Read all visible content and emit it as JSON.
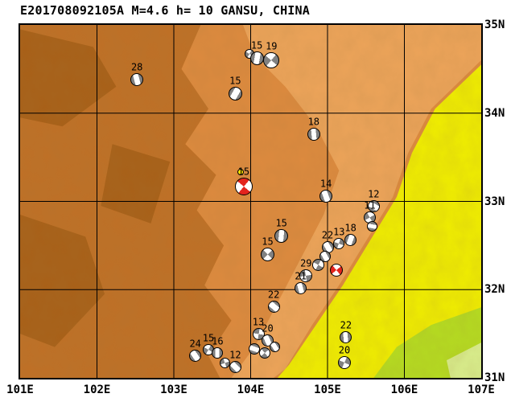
{
  "title": "E201708092105A M=4.6 h= 10 GANSU, CHINA",
  "map": {
    "lon_min": 101,
    "lon_max": 107,
    "lat_min": 31,
    "lat_max": 35,
    "x_ticks": [
      {
        "value": 101,
        "label": "101E"
      },
      {
        "value": 102,
        "label": "102E"
      },
      {
        "value": 103,
        "label": "103E"
      },
      {
        "value": 104,
        "label": "104E"
      },
      {
        "value": 105,
        "label": "105E"
      },
      {
        "value": 106,
        "label": "106E"
      },
      {
        "value": 107,
        "label": "107E"
      }
    ],
    "y_ticks": [
      {
        "value": 35,
        "label": "35N"
      },
      {
        "value": 34,
        "label": "34N"
      },
      {
        "value": 33,
        "label": "33N"
      },
      {
        "value": 32,
        "label": "32N"
      },
      {
        "value": 31,
        "label": "31N"
      }
    ],
    "grid_lons": [
      102,
      103,
      104,
      105,
      106
    ],
    "grid_lats": [
      32,
      33,
      34
    ]
  },
  "colors": {
    "land_mid": "#dd8a3e",
    "land_dark": "#bf7026",
    "land_darker": "#a86018",
    "land_light": "#eda45a",
    "basin_yellow": "#f0ee00",
    "basin_green": "#b5dd20",
    "basin_pale_green": "#d9ef8d",
    "ball_gray": "#818181",
    "ball_red": "#e3241d",
    "dot_yellow": "#ffe400",
    "outline": "#000000"
  },
  "terrain_regions": [
    {
      "color": "land_dark",
      "points": [
        [
          101,
          35
        ],
        [
          103.35,
          35
        ],
        [
          103.1,
          34.5
        ],
        [
          103.45,
          34.05
        ],
        [
          103.15,
          33.65
        ],
        [
          103.55,
          33.3
        ],
        [
          103.3,
          32.9
        ],
        [
          103.65,
          32.5
        ],
        [
          103.4,
          32.05
        ],
        [
          103.75,
          31.65
        ],
        [
          103.45,
          31.25
        ],
        [
          103.6,
          31
        ],
        [
          101,
          31
        ]
      ]
    },
    {
      "color": "land_darker",
      "points": [
        [
          101,
          34.95
        ],
        [
          101.95,
          34.75
        ],
        [
          102.25,
          34.3
        ],
        [
          101.55,
          33.85
        ],
        [
          101,
          33.95
        ]
      ]
    },
    {
      "color": "land_darker",
      "points": [
        [
          101,
          32.85
        ],
        [
          101.85,
          32.6
        ],
        [
          102.1,
          31.95
        ],
        [
          101.45,
          31.35
        ],
        [
          101,
          31.5
        ]
      ]
    },
    {
      "color": "land_darker",
      "points": [
        [
          102.2,
          33.65
        ],
        [
          102.95,
          33.45
        ],
        [
          102.7,
          32.75
        ],
        [
          102.05,
          32.95
        ]
      ]
    },
    {
      "color": "land_light",
      "points": [
        [
          103.9,
          35
        ],
        [
          107,
          35
        ],
        [
          107,
          34.6
        ],
        [
          106.35,
          34.05
        ],
        [
          106.05,
          33.55
        ],
        [
          105.85,
          33.05
        ],
        [
          105.5,
          32.55
        ],
        [
          105.15,
          32.05
        ],
        [
          104.8,
          31.6
        ],
        [
          104.45,
          31.1
        ],
        [
          104.3,
          31
        ],
        [
          103.75,
          31
        ],
        [
          104.05,
          31.35
        ],
        [
          104.35,
          31.85
        ],
        [
          104.65,
          32.35
        ],
        [
          104.95,
          32.85
        ],
        [
          105.15,
          33.35
        ],
        [
          104.85,
          33.85
        ],
        [
          104.45,
          34.3
        ],
        [
          104.05,
          34.65
        ]
      ]
    },
    {
      "color": "basin_yellow",
      "points": [
        [
          107,
          34.55
        ],
        [
          106.4,
          34.05
        ],
        [
          106.1,
          33.55
        ],
        [
          105.9,
          33.05
        ],
        [
          105.55,
          32.55
        ],
        [
          105.2,
          32.05
        ],
        [
          104.85,
          31.6
        ],
        [
          104.5,
          31.15
        ],
        [
          104.35,
          31
        ],
        [
          107,
          31
        ]
      ]
    },
    {
      "color": "basin_green",
      "points": [
        [
          107,
          31.8
        ],
        [
          106.35,
          31.6
        ],
        [
          105.9,
          31.35
        ],
        [
          105.6,
          31
        ],
        [
          107,
          31
        ]
      ]
    },
    {
      "color": "basin_pale_green",
      "points": [
        [
          107,
          31.4
        ],
        [
          106.55,
          31.2
        ],
        [
          106.6,
          31
        ],
        [
          107,
          31
        ]
      ]
    }
  ],
  "beachballs": [
    {
      "depth": "28",
      "lon": 102.52,
      "lat": 34.38,
      "size": 16,
      "rot": 75,
      "style": "stripe",
      "color": "gray"
    },
    {
      "depth": "",
      "lon": 103.98,
      "lat": 34.67,
      "size": 12,
      "rot": 30,
      "style": "quad",
      "color": "gray"
    },
    {
      "depth": "15",
      "lon": 104.08,
      "lat": 34.62,
      "size": 17,
      "rot": 100,
      "style": "stripe",
      "color": "gray"
    },
    {
      "depth": "19",
      "lon": 104.27,
      "lat": 34.6,
      "size": 20,
      "rot": 40,
      "style": "quad",
      "color": "gray"
    },
    {
      "depth": "15",
      "lon": 103.8,
      "lat": 34.22,
      "size": 17,
      "rot": 120,
      "style": "stripe",
      "color": "gray"
    },
    {
      "depth": "18",
      "lon": 104.82,
      "lat": 33.76,
      "size": 16,
      "rot": 85,
      "style": "stripe",
      "color": "gray"
    },
    {
      "depth": "15",
      "lon": 103.91,
      "lat": 33.17,
      "size": 22,
      "rot": 130,
      "style": "quad",
      "color": "red"
    },
    {
      "depth": "14",
      "lon": 104.98,
      "lat": 33.06,
      "size": 16,
      "rot": 70,
      "style": "stripe",
      "color": "gray"
    },
    {
      "depth": "12",
      "lon": 105.6,
      "lat": 32.95,
      "size": 15,
      "rot": 30,
      "style": "stripe",
      "color": "gray"
    },
    {
      "depth": "11",
      "lon": 105.55,
      "lat": 32.82,
      "size": 15,
      "rot": 60,
      "style": "quad",
      "color": "gray"
    },
    {
      "depth": "",
      "lon": 105.58,
      "lat": 32.72,
      "size": 13,
      "rot": 10,
      "style": "stripe",
      "color": "gray"
    },
    {
      "depth": "15",
      "lon": 104.4,
      "lat": 32.61,
      "size": 17,
      "rot": 95,
      "style": "stripe",
      "color": "gray"
    },
    {
      "depth": "15",
      "lon": 104.22,
      "lat": 32.4,
      "size": 17,
      "rot": 45,
      "style": "quad",
      "color": "gray"
    },
    {
      "depth": "22",
      "lon": 105.0,
      "lat": 32.48,
      "size": 15,
      "rot": 60,
      "style": "stripe",
      "color": "gray"
    },
    {
      "depth": "13",
      "lon": 105.15,
      "lat": 32.52,
      "size": 14,
      "rot": 20,
      "style": "quad",
      "color": "gray"
    },
    {
      "depth": "18",
      "lon": 105.3,
      "lat": 32.56,
      "size": 15,
      "rot": 110,
      "style": "stripe",
      "color": "gray"
    },
    {
      "depth": "",
      "lon": 104.97,
      "lat": 32.38,
      "size": 14,
      "rot": 60,
      "style": "stripe",
      "color": "gray"
    },
    {
      "depth": "29",
      "lon": 104.72,
      "lat": 32.16,
      "size": 16,
      "rot": 80,
      "style": "quad",
      "color": "gray"
    },
    {
      "depth": "",
      "lon": 104.88,
      "lat": 32.28,
      "size": 15,
      "rot": 120,
      "style": "quad",
      "color": "gray"
    },
    {
      "depth": "",
      "lon": 105.11,
      "lat": 32.22,
      "size": 16,
      "rot": 50,
      "style": "quad",
      "color": "red"
    },
    {
      "depth": "21",
      "lon": 104.65,
      "lat": 32.02,
      "size": 15,
      "rot": 75,
      "style": "stripe",
      "color": "gray"
    },
    {
      "depth": "22",
      "lon": 104.3,
      "lat": 31.81,
      "size": 15,
      "rot": 40,
      "style": "stripe",
      "color": "gray"
    },
    {
      "depth": "13",
      "lon": 104.1,
      "lat": 31.5,
      "size": 15,
      "rot": 100,
      "style": "quad",
      "color": "gray"
    },
    {
      "depth": "20",
      "lon": 104.22,
      "lat": 31.42,
      "size": 15,
      "rot": 65,
      "style": "stripe",
      "color": "gray"
    },
    {
      "depth": "",
      "lon": 104.05,
      "lat": 31.33,
      "size": 14,
      "rot": 20,
      "style": "stripe",
      "color": "gray"
    },
    {
      "depth": "",
      "lon": 104.18,
      "lat": 31.28,
      "size": 14,
      "rot": 140,
      "style": "quad",
      "color": "gray"
    },
    {
      "depth": "",
      "lon": 104.31,
      "lat": 31.35,
      "size": 13,
      "rot": 55,
      "style": "stripe",
      "color": "gray"
    },
    {
      "depth": "24",
      "lon": 103.28,
      "lat": 31.25,
      "size": 15,
      "rot": 55,
      "style": "stripe",
      "color": "gray"
    },
    {
      "depth": "15",
      "lon": 103.45,
      "lat": 31.32,
      "size": 14,
      "rot": 30,
      "style": "quad",
      "color": "gray"
    },
    {
      "depth": "16",
      "lon": 103.57,
      "lat": 31.28,
      "size": 14,
      "rot": 90,
      "style": "stripe",
      "color": "gray"
    },
    {
      "depth": "",
      "lon": 103.66,
      "lat": 31.17,
      "size": 13,
      "rot": 70,
      "style": "quad",
      "color": "gray"
    },
    {
      "depth": "12",
      "lon": 103.8,
      "lat": 31.12,
      "size": 15,
      "rot": 45,
      "style": "stripe",
      "color": "gray"
    },
    {
      "depth": "22",
      "lon": 105.24,
      "lat": 31.46,
      "size": 15,
      "rot": 85,
      "style": "stripe",
      "color": "gray"
    },
    {
      "depth": "20",
      "lon": 105.22,
      "lat": 31.17,
      "size": 16,
      "rot": 25,
      "style": "quad",
      "color": "gray"
    }
  ],
  "event_marker": {
    "lon": 103.87,
    "lat": 33.33,
    "size": 8
  }
}
